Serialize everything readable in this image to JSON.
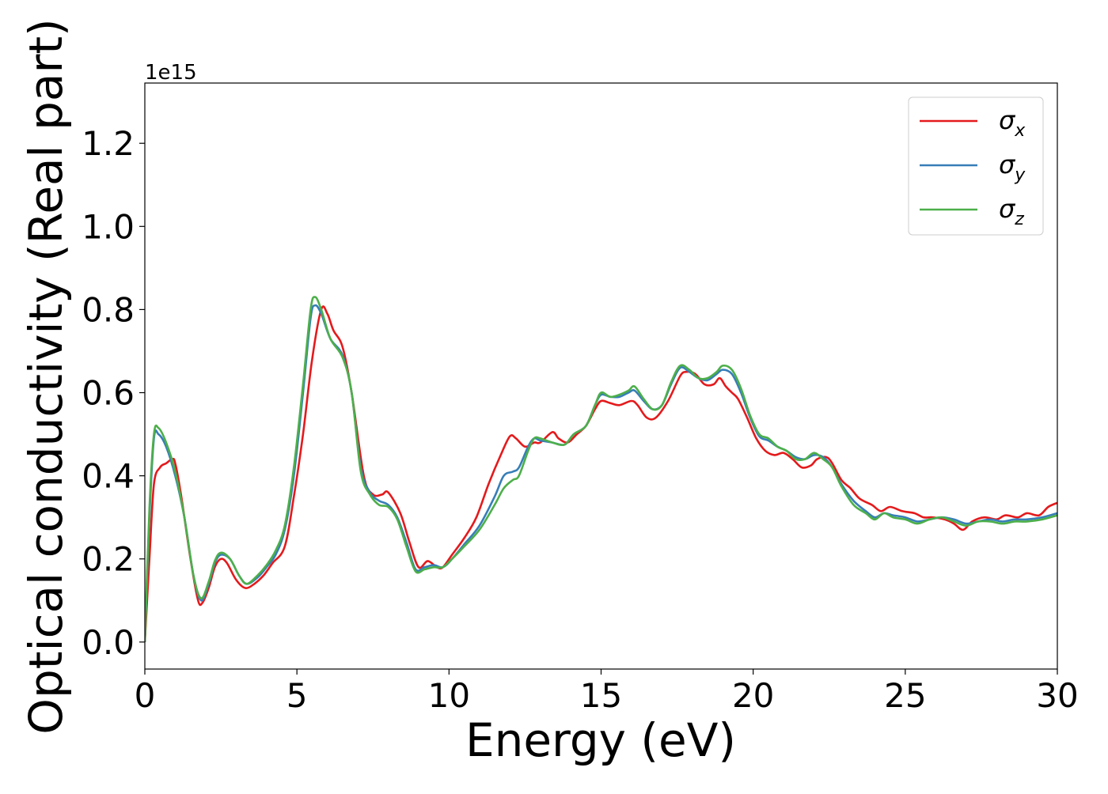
{
  "chart_data": {
    "type": "line",
    "xlabel": "Energy (eV)",
    "ylabel": "Optical conductivity (Real part)",
    "y_offset_label": "1e15",
    "xlim": [
      0,
      30
    ],
    "ylim": [
      -0.065,
      1.345
    ],
    "x_ticks": [
      0,
      5,
      10,
      15,
      20,
      25,
      30
    ],
    "x_tick_labels": [
      "0",
      "5",
      "10",
      "15",
      "20",
      "25",
      "30"
    ],
    "y_ticks": [
      0.0,
      0.2,
      0.4,
      0.6,
      0.8,
      1.0,
      1.2
    ],
    "y_tick_labels": [
      "0.0",
      "0.2",
      "0.4",
      "0.6",
      "0.8",
      "1.0",
      "1.2"
    ],
    "grid": false,
    "legend_position": "top-right",
    "series": [
      {
        "name": "σx",
        "legend_base": "σ",
        "legend_sub": "x",
        "color": "#e41a1c",
        "points": [
          [
            0,
            0
          ],
          [
            0.15,
            0.2
          ],
          [
            0.3,
            0.38
          ],
          [
            0.5,
            0.42
          ],
          [
            0.7,
            0.43
          ],
          [
            0.9,
            0.44
          ],
          [
            1.0,
            0.43
          ],
          [
            1.2,
            0.35
          ],
          [
            1.5,
            0.2
          ],
          [
            1.75,
            0.1
          ],
          [
            1.9,
            0.095
          ],
          [
            2.1,
            0.13
          ],
          [
            2.3,
            0.18
          ],
          [
            2.5,
            0.2
          ],
          [
            2.7,
            0.19
          ],
          [
            3.0,
            0.15
          ],
          [
            3.3,
            0.13
          ],
          [
            3.6,
            0.14
          ],
          [
            3.9,
            0.16
          ],
          [
            4.2,
            0.19
          ],
          [
            4.6,
            0.23
          ],
          [
            4.9,
            0.35
          ],
          [
            5.2,
            0.5
          ],
          [
            5.5,
            0.68
          ],
          [
            5.8,
            0.8
          ],
          [
            6.0,
            0.79
          ],
          [
            6.2,
            0.75
          ],
          [
            6.5,
            0.71
          ],
          [
            6.8,
            0.6
          ],
          [
            7.2,
            0.4
          ],
          [
            7.5,
            0.355
          ],
          [
            7.8,
            0.355
          ],
          [
            8.0,
            0.36
          ],
          [
            8.4,
            0.31
          ],
          [
            8.7,
            0.24
          ],
          [
            9.0,
            0.18
          ],
          [
            9.3,
            0.195
          ],
          [
            9.6,
            0.18
          ],
          [
            9.8,
            0.18
          ],
          [
            10.1,
            0.21
          ],
          [
            10.5,
            0.25
          ],
          [
            10.9,
            0.3
          ],
          [
            11.3,
            0.38
          ],
          [
            11.7,
            0.45
          ],
          [
            12.0,
            0.495
          ],
          [
            12.2,
            0.49
          ],
          [
            12.5,
            0.47
          ],
          [
            12.8,
            0.48
          ],
          [
            13.0,
            0.48
          ],
          [
            13.4,
            0.505
          ],
          [
            13.6,
            0.49
          ],
          [
            13.9,
            0.48
          ],
          [
            14.2,
            0.5
          ],
          [
            14.5,
            0.52
          ],
          [
            14.8,
            0.56
          ],
          [
            15.0,
            0.58
          ],
          [
            15.3,
            0.575
          ],
          [
            15.6,
            0.57
          ],
          [
            16.0,
            0.58
          ],
          [
            16.2,
            0.57
          ],
          [
            16.5,
            0.54
          ],
          [
            16.8,
            0.54
          ],
          [
            17.2,
            0.58
          ],
          [
            17.6,
            0.64
          ],
          [
            17.8,
            0.65
          ],
          [
            18.1,
            0.645
          ],
          [
            18.4,
            0.62
          ],
          [
            18.7,
            0.62
          ],
          [
            18.9,
            0.635
          ],
          [
            19.1,
            0.615
          ],
          [
            19.3,
            0.6
          ],
          [
            19.5,
            0.585
          ],
          [
            19.8,
            0.54
          ],
          [
            20.1,
            0.49
          ],
          [
            20.4,
            0.46
          ],
          [
            20.7,
            0.45
          ],
          [
            21.0,
            0.455
          ],
          [
            21.3,
            0.44
          ],
          [
            21.6,
            0.42
          ],
          [
            21.9,
            0.425
          ],
          [
            22.1,
            0.44
          ],
          [
            22.4,
            0.445
          ],
          [
            22.6,
            0.43
          ],
          [
            22.9,
            0.39
          ],
          [
            23.2,
            0.37
          ],
          [
            23.5,
            0.345
          ],
          [
            23.9,
            0.33
          ],
          [
            24.2,
            0.315
          ],
          [
            24.5,
            0.325
          ],
          [
            24.9,
            0.315
          ],
          [
            25.3,
            0.31
          ],
          [
            25.6,
            0.3
          ],
          [
            25.9,
            0.3
          ],
          [
            26.3,
            0.295
          ],
          [
            26.6,
            0.285
          ],
          [
            26.9,
            0.27
          ],
          [
            27.2,
            0.29
          ],
          [
            27.6,
            0.3
          ],
          [
            28.0,
            0.295
          ],
          [
            28.3,
            0.305
          ],
          [
            28.7,
            0.3
          ],
          [
            29.0,
            0.31
          ],
          [
            29.4,
            0.305
          ],
          [
            29.7,
            0.325
          ],
          [
            30,
            0.335
          ]
        ]
      },
      {
        "name": "σy",
        "legend_base": "σ",
        "legend_sub": "y",
        "color": "#377eb8",
        "points": [
          [
            0,
            0
          ],
          [
            0.15,
            0.3
          ],
          [
            0.3,
            0.49
          ],
          [
            0.45,
            0.5
          ],
          [
            0.7,
            0.47
          ],
          [
            1.0,
            0.4
          ],
          [
            1.3,
            0.3
          ],
          [
            1.6,
            0.16
          ],
          [
            1.85,
            0.1
          ],
          [
            2.1,
            0.14
          ],
          [
            2.3,
            0.19
          ],
          [
            2.5,
            0.21
          ],
          [
            2.8,
            0.2
          ],
          [
            3.1,
            0.16
          ],
          [
            3.35,
            0.14
          ],
          [
            3.7,
            0.155
          ],
          [
            4.0,
            0.18
          ],
          [
            4.3,
            0.21
          ],
          [
            4.6,
            0.27
          ],
          [
            4.9,
            0.4
          ],
          [
            5.2,
            0.6
          ],
          [
            5.45,
            0.78
          ],
          [
            5.6,
            0.81
          ],
          [
            5.8,
            0.79
          ],
          [
            6.1,
            0.73
          ],
          [
            6.5,
            0.69
          ],
          [
            6.8,
            0.6
          ],
          [
            7.1,
            0.42
          ],
          [
            7.4,
            0.36
          ],
          [
            7.7,
            0.34
          ],
          [
            8.0,
            0.33
          ],
          [
            8.3,
            0.3
          ],
          [
            8.6,
            0.24
          ],
          [
            8.9,
            0.175
          ],
          [
            9.2,
            0.18
          ],
          [
            9.5,
            0.185
          ],
          [
            9.8,
            0.18
          ],
          [
            10.1,
            0.2
          ],
          [
            10.5,
            0.235
          ],
          [
            11.0,
            0.28
          ],
          [
            11.5,
            0.35
          ],
          [
            11.8,
            0.4
          ],
          [
            12.1,
            0.41
          ],
          [
            12.3,
            0.42
          ],
          [
            12.6,
            0.47
          ],
          [
            12.8,
            0.49
          ],
          [
            13.0,
            0.485
          ],
          [
            13.4,
            0.48
          ],
          [
            13.8,
            0.475
          ],
          [
            14.1,
            0.5
          ],
          [
            14.5,
            0.52
          ],
          [
            14.8,
            0.57
          ],
          [
            15.0,
            0.595
          ],
          [
            15.3,
            0.59
          ],
          [
            15.6,
            0.59
          ],
          [
            15.9,
            0.6
          ],
          [
            16.1,
            0.605
          ],
          [
            16.4,
            0.58
          ],
          [
            16.7,
            0.56
          ],
          [
            17.0,
            0.57
          ],
          [
            17.3,
            0.62
          ],
          [
            17.6,
            0.66
          ],
          [
            17.9,
            0.65
          ],
          [
            18.2,
            0.635
          ],
          [
            18.5,
            0.63
          ],
          [
            18.8,
            0.645
          ],
          [
            19.0,
            0.655
          ],
          [
            19.3,
            0.645
          ],
          [
            19.6,
            0.6
          ],
          [
            19.9,
            0.54
          ],
          [
            20.2,
            0.495
          ],
          [
            20.5,
            0.485
          ],
          [
            20.8,
            0.47
          ],
          [
            21.1,
            0.46
          ],
          [
            21.4,
            0.445
          ],
          [
            21.7,
            0.44
          ],
          [
            22.0,
            0.45
          ],
          [
            22.3,
            0.445
          ],
          [
            22.6,
            0.42
          ],
          [
            22.9,
            0.38
          ],
          [
            23.3,
            0.34
          ],
          [
            23.7,
            0.315
          ],
          [
            24.0,
            0.3
          ],
          [
            24.3,
            0.31
          ],
          [
            24.6,
            0.305
          ],
          [
            25.0,
            0.3
          ],
          [
            25.4,
            0.29
          ],
          [
            25.8,
            0.295
          ],
          [
            26.2,
            0.3
          ],
          [
            26.6,
            0.295
          ],
          [
            27.0,
            0.285
          ],
          [
            27.4,
            0.29
          ],
          [
            27.8,
            0.295
          ],
          [
            28.2,
            0.29
          ],
          [
            28.6,
            0.295
          ],
          [
            29.0,
            0.295
          ],
          [
            29.5,
            0.3
          ],
          [
            30,
            0.31
          ]
        ]
      },
      {
        "name": "σz",
        "legend_base": "σ",
        "legend_sub": "z",
        "color": "#4daf4a",
        "points": [
          [
            0,
            0
          ],
          [
            0.15,
            0.32
          ],
          [
            0.3,
            0.5
          ],
          [
            0.45,
            0.515
          ],
          [
            0.7,
            0.48
          ],
          [
            1.0,
            0.41
          ],
          [
            1.3,
            0.3
          ],
          [
            1.6,
            0.16
          ],
          [
            1.85,
            0.105
          ],
          [
            2.1,
            0.145
          ],
          [
            2.3,
            0.195
          ],
          [
            2.5,
            0.215
          ],
          [
            2.8,
            0.2
          ],
          [
            3.1,
            0.16
          ],
          [
            3.35,
            0.14
          ],
          [
            3.7,
            0.16
          ],
          [
            4.0,
            0.185
          ],
          [
            4.3,
            0.22
          ],
          [
            4.6,
            0.28
          ],
          [
            4.9,
            0.42
          ],
          [
            5.2,
            0.62
          ],
          [
            5.45,
            0.8
          ],
          [
            5.6,
            0.83
          ],
          [
            5.8,
            0.8
          ],
          [
            6.1,
            0.73
          ],
          [
            6.5,
            0.685
          ],
          [
            6.8,
            0.6
          ],
          [
            7.1,
            0.41
          ],
          [
            7.4,
            0.355
          ],
          [
            7.7,
            0.33
          ],
          [
            8.0,
            0.325
          ],
          [
            8.3,
            0.295
          ],
          [
            8.6,
            0.23
          ],
          [
            8.9,
            0.17
          ],
          [
            9.2,
            0.175
          ],
          [
            9.5,
            0.18
          ],
          [
            9.8,
            0.18
          ],
          [
            10.1,
            0.2
          ],
          [
            10.5,
            0.23
          ],
          [
            11.0,
            0.27
          ],
          [
            11.5,
            0.33
          ],
          [
            11.8,
            0.37
          ],
          [
            12.1,
            0.39
          ],
          [
            12.3,
            0.4
          ],
          [
            12.6,
            0.46
          ],
          [
            12.8,
            0.49
          ],
          [
            13.0,
            0.49
          ],
          [
            13.4,
            0.48
          ],
          [
            13.8,
            0.475
          ],
          [
            14.1,
            0.5
          ],
          [
            14.5,
            0.52
          ],
          [
            14.8,
            0.57
          ],
          [
            15.0,
            0.6
          ],
          [
            15.3,
            0.59
          ],
          [
            15.6,
            0.595
          ],
          [
            15.9,
            0.605
          ],
          [
            16.1,
            0.615
          ],
          [
            16.4,
            0.585
          ],
          [
            16.7,
            0.56
          ],
          [
            17.0,
            0.57
          ],
          [
            17.3,
            0.625
          ],
          [
            17.6,
            0.665
          ],
          [
            17.9,
            0.655
          ],
          [
            18.2,
            0.635
          ],
          [
            18.5,
            0.635
          ],
          [
            18.8,
            0.65
          ],
          [
            19.0,
            0.665
          ],
          [
            19.3,
            0.655
          ],
          [
            19.6,
            0.61
          ],
          [
            19.9,
            0.545
          ],
          [
            20.2,
            0.5
          ],
          [
            20.5,
            0.49
          ],
          [
            20.8,
            0.47
          ],
          [
            21.1,
            0.46
          ],
          [
            21.4,
            0.44
          ],
          [
            21.7,
            0.44
          ],
          [
            22.0,
            0.455
          ],
          [
            22.3,
            0.44
          ],
          [
            22.6,
            0.42
          ],
          [
            22.9,
            0.375
          ],
          [
            23.3,
            0.33
          ],
          [
            23.7,
            0.31
          ],
          [
            24.0,
            0.295
          ],
          [
            24.3,
            0.31
          ],
          [
            24.6,
            0.3
          ],
          [
            25.0,
            0.295
          ],
          [
            25.4,
            0.285
          ],
          [
            25.8,
            0.295
          ],
          [
            26.2,
            0.3
          ],
          [
            26.6,
            0.29
          ],
          [
            27.0,
            0.28
          ],
          [
            27.4,
            0.29
          ],
          [
            27.8,
            0.29
          ],
          [
            28.2,
            0.285
          ],
          [
            28.6,
            0.29
          ],
          [
            29.0,
            0.29
          ],
          [
            29.5,
            0.295
          ],
          [
            30,
            0.305
          ]
        ]
      }
    ]
  }
}
